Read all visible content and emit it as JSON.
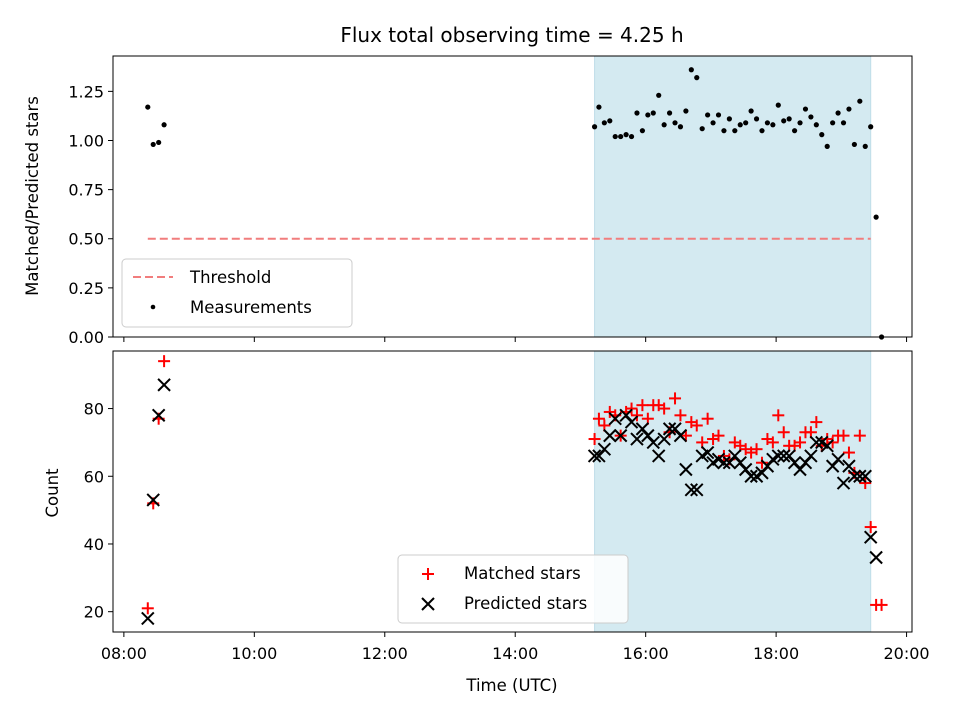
{
  "chart_data": [
    {
      "type": "scatter",
      "title": "Flux total observing time = 4.25 h",
      "xlabel": "",
      "ylabel": "Matched/Predicted stars",
      "ylim": [
        0,
        1.43
      ],
      "yticks": [
        "0.00",
        "0.25",
        "0.50",
        "0.75",
        "1.00",
        "1.25"
      ],
      "ytick_values": [
        0,
        0.25,
        0.5,
        0.75,
        1.0,
        1.25
      ],
      "shaded_span": [
        "15:13",
        "19:27"
      ],
      "shade_color": "#d4eaf1",
      "threshold": {
        "name": "Threshold",
        "value": 0.5,
        "x_range": [
          "08:22",
          "19:27"
        ],
        "color": "#f17d7d"
      },
      "legend": {
        "placement": "lower-left",
        "entries": [
          "Threshold",
          "Measurements"
        ]
      },
      "series": [
        {
          "name": "Measurements",
          "color": "#000000",
          "points": [
            [
              "08:22",
              1.17
            ],
            [
              "08:27",
              0.98
            ],
            [
              "08:32",
              0.99
            ],
            [
              "08:37",
              1.08
            ],
            [
              "15:13",
              1.07
            ],
            [
              "15:17",
              1.17
            ],
            [
              "15:22",
              1.09
            ],
            [
              "15:27",
              1.1
            ],
            [
              "15:32",
              1.02
            ],
            [
              "15:37",
              1.02
            ],
            [
              "15:42",
              1.03
            ],
            [
              "15:47",
              1.02
            ],
            [
              "15:52",
              1.14
            ],
            [
              "15:57",
              1.05
            ],
            [
              "16:02",
              1.13
            ],
            [
              "16:07",
              1.14
            ],
            [
              "16:12",
              1.23
            ],
            [
              "16:17",
              1.08
            ],
            [
              "16:22",
              1.14
            ],
            [
              "16:27",
              1.09
            ],
            [
              "16:32",
              1.07
            ],
            [
              "16:37",
              1.15
            ],
            [
              "16:42",
              1.36
            ],
            [
              "16:47",
              1.32
            ],
            [
              "16:52",
              1.06
            ],
            [
              "16:57",
              1.13
            ],
            [
              "17:02",
              1.09
            ],
            [
              "17:07",
              1.13
            ],
            [
              "17:12",
              1.05
            ],
            [
              "17:17",
              1.11
            ],
            [
              "17:22",
              1.05
            ],
            [
              "17:27",
              1.08
            ],
            [
              "17:32",
              1.09
            ],
            [
              "17:37",
              1.15
            ],
            [
              "17:42",
              1.11
            ],
            [
              "17:47",
              1.05
            ],
            [
              "17:52",
              1.09
            ],
            [
              "17:57",
              1.08
            ],
            [
              "18:02",
              1.18
            ],
            [
              "18:07",
              1.1
            ],
            [
              "18:12",
              1.11
            ],
            [
              "18:17",
              1.05
            ],
            [
              "18:22",
              1.09
            ],
            [
              "18:27",
              1.16
            ],
            [
              "18:32",
              1.12
            ],
            [
              "18:37",
              1.08
            ],
            [
              "18:42",
              1.03
            ],
            [
              "18:47",
              0.97
            ],
            [
              "18:52",
              1.09
            ],
            [
              "18:57",
              1.14
            ],
            [
              "19:02",
              1.09
            ],
            [
              "19:07",
              1.16
            ],
            [
              "19:12",
              0.98
            ],
            [
              "19:17",
              1.2
            ],
            [
              "19:22",
              0.97
            ],
            [
              "19:27",
              1.07
            ],
            [
              "19:32",
              0.61
            ],
            [
              "19:37",
              0.0
            ]
          ]
        }
      ]
    },
    {
      "type": "scatter",
      "title": "",
      "xlabel": "Time (UTC)",
      "ylabel": "Count",
      "ylim": [
        14,
        97
      ],
      "yticks": [
        "20",
        "40",
        "60",
        "80"
      ],
      "ytick_values": [
        20,
        40,
        60,
        80
      ],
      "xlim": [
        "07:50",
        "20:05"
      ],
      "xticks": [
        "08:00",
        "10:00",
        "12:00",
        "14:00",
        "16:00",
        "18:00",
        "20:00"
      ],
      "shaded_span": [
        "15:13",
        "19:27"
      ],
      "legend": {
        "placement": "lower-center",
        "entries": [
          "Matched stars",
          "Predicted stars"
        ]
      },
      "series": [
        {
          "name": "Matched stars",
          "marker": "+",
          "color": "#ff0000",
          "points": [
            [
              "08:22",
              21
            ],
            [
              "08:27",
              52
            ],
            [
              "08:32",
              77
            ],
            [
              "08:37",
              94
            ],
            [
              "15:13",
              71
            ],
            [
              "15:17",
              77
            ],
            [
              "15:22",
              75
            ],
            [
              "15:27",
              79
            ],
            [
              "15:32",
              78
            ],
            [
              "15:37",
              72
            ],
            [
              "15:42",
              79
            ],
            [
              "15:47",
              80
            ],
            [
              "15:52",
              78
            ],
            [
              "15:57",
              81
            ],
            [
              "16:02",
              77
            ],
            [
              "16:07",
              81
            ],
            [
              "16:12",
              81
            ],
            [
              "16:17",
              80
            ],
            [
              "16:22",
              73
            ],
            [
              "16:27",
              83
            ],
            [
              "16:32",
              78
            ],
            [
              "16:37",
              72
            ],
            [
              "16:42",
              76
            ],
            [
              "16:47",
              75
            ],
            [
              "16:52",
              70
            ],
            [
              "16:57",
              77
            ],
            [
              "17:02",
              71
            ],
            [
              "17:07",
              72
            ],
            [
              "17:12",
              66
            ],
            [
              "17:17",
              65
            ],
            [
              "17:22",
              70
            ],
            [
              "17:27",
              69
            ],
            [
              "17:32",
              68
            ],
            [
              "17:37",
              67
            ],
            [
              "17:42",
              68
            ],
            [
              "17:47",
              64
            ],
            [
              "17:52",
              71
            ],
            [
              "17:57",
              70
            ],
            [
              "18:02",
              78
            ],
            [
              "18:07",
              73
            ],
            [
              "18:12",
              69
            ],
            [
              "18:17",
              69
            ],
            [
              "18:22",
              70
            ],
            [
              "18:27",
              73
            ],
            [
              "18:32",
              73
            ],
            [
              "18:37",
              76
            ],
            [
              "18:42",
              69
            ],
            [
              "18:47",
              71
            ],
            [
              "18:52",
              70
            ],
            [
              "18:57",
              72
            ],
            [
              "19:02",
              72
            ],
            [
              "19:07",
              67
            ],
            [
              "19:12",
              61
            ],
            [
              "19:17",
              72
            ],
            [
              "19:22",
              58
            ],
            [
              "19:27",
              45
            ],
            [
              "19:32",
              22
            ],
            [
              "19:37",
              22
            ]
          ]
        },
        {
          "name": "Predicted stars",
          "marker": "x",
          "color": "#000000",
          "points": [
            [
              "08:22",
              18
            ],
            [
              "08:27",
              53
            ],
            [
              "08:32",
              78
            ],
            [
              "08:37",
              87
            ],
            [
              "15:13",
              66
            ],
            [
              "15:17",
              66
            ],
            [
              "15:22",
              68
            ],
            [
              "15:27",
              72
            ],
            [
              "15:32",
              77
            ],
            [
              "15:37",
              72
            ],
            [
              "15:42",
              78
            ],
            [
              "15:47",
              76
            ],
            [
              "15:52",
              71
            ],
            [
              "15:57",
              74
            ],
            [
              "16:02",
              72
            ],
            [
              "16:07",
              70
            ],
            [
              "16:12",
              66
            ],
            [
              "16:17",
              71
            ],
            [
              "16:22",
              74
            ],
            [
              "16:27",
              74
            ],
            [
              "16:32",
              72
            ],
            [
              "16:37",
              62
            ],
            [
              "16:42",
              56
            ],
            [
              "16:47",
              56
            ],
            [
              "16:52",
              66
            ],
            [
              "16:57",
              67
            ],
            [
              "17:02",
              64
            ],
            [
              "17:07",
              65
            ],
            [
              "17:12",
              64
            ],
            [
              "17:17",
              64
            ],
            [
              "17:22",
              66
            ],
            [
              "17:27",
              64
            ],
            [
              "17:32",
              62
            ],
            [
              "17:37",
              60
            ],
            [
              "17:42",
              60
            ],
            [
              "17:47",
              61
            ],
            [
              "17:52",
              63
            ],
            [
              "17:57",
              65
            ],
            [
              "18:02",
              66
            ],
            [
              "18:07",
              66
            ],
            [
              "18:12",
              66
            ],
            [
              "18:17",
              64
            ],
            [
              "18:22",
              62
            ],
            [
              "18:27",
              64
            ],
            [
              "18:32",
              66
            ],
            [
              "18:37",
              70
            ],
            [
              "18:42",
              70
            ],
            [
              "18:47",
              69
            ],
            [
              "18:52",
              63
            ],
            [
              "18:57",
              65
            ],
            [
              "19:02",
              58
            ],
            [
              "19:07",
              63
            ],
            [
              "19:12",
              60
            ],
            [
              "19:17",
              60
            ],
            [
              "19:22",
              60
            ],
            [
              "19:27",
              42
            ],
            [
              "19:32",
              36
            ]
          ]
        }
      ]
    }
  ]
}
